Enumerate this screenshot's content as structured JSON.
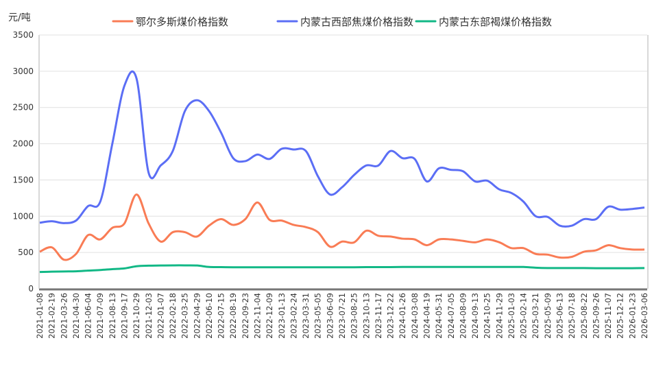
{
  "chart_data": {
    "type": "line",
    "ylabel": "元/吨",
    "ylim": [
      0,
      3500
    ],
    "yticks": [
      0,
      500,
      1000,
      1500,
      2000,
      2500,
      3000,
      3500
    ],
    "grid": "horizontal",
    "legend_placement": "top",
    "x": [
      "2021-01-08",
      "2021-02-19",
      "2021-03-26",
      "2021-04-30",
      "2021-06-04",
      "2021-07-09",
      "2021-08-13",
      "2021-09-17",
      "2021-10-29",
      "2021-12-03",
      "2022-01-07",
      "2022-02-18",
      "2022-03-25",
      "2022-04-29",
      "2022-06-10",
      "2022-07-15",
      "2022-08-19",
      "2022-09-23",
      "2022-11-04",
      "2022-12-09",
      "2023-01-13",
      "2023-02-24",
      "2023-03-31",
      "2023-05-05",
      "2023-06-09",
      "2023-07-21",
      "2023-08-25",
      "2023-10-13",
      "2023-11-17",
      "2023-12-22",
      "2024-01-26",
      "2024-03-08",
      "2024-04-19",
      "2024-05-31",
      "2024-07-05",
      "2024-08-09",
      "2024-09-13",
      "2024-10-25",
      "2024-11-29",
      "2025-01-03",
      "2025-02-14",
      "2025-03-21",
      "2025-05-09",
      "2025-06-13",
      "2025-07-18",
      "2025-08-22",
      "2025-09-26",
      "2025-11-07",
      "2025-12-12",
      "2026-01-23",
      "2026-03-06"
    ],
    "series": [
      {
        "name": "鄂尔多斯煤价格指数",
        "color": "#f97c55",
        "values": [
          510,
          570,
          400,
          480,
          740,
          680,
          840,
          900,
          1300,
          900,
          650,
          780,
          780,
          720,
          870,
          960,
          880,
          960,
          1190,
          950,
          940,
          880,
          850,
          780,
          580,
          650,
          640,
          800,
          730,
          720,
          690,
          680,
          600,
          680,
          680,
          660,
          640,
          680,
          640,
          560,
          560,
          480,
          470,
          430,
          440,
          510,
          530,
          600,
          560,
          540,
          540
        ]
      },
      {
        "name": "内蒙古西部焦煤价格指数",
        "color": "#5b6ef5",
        "values": [
          910,
          930,
          905,
          940,
          1140,
          1200,
          2000,
          2800,
          2900,
          1600,
          1700,
          1900,
          2450,
          2600,
          2450,
          2150,
          1800,
          1760,
          1850,
          1790,
          1930,
          1920,
          1900,
          1550,
          1300,
          1400,
          1570,
          1700,
          1700,
          1900,
          1800,
          1790,
          1480,
          1660,
          1640,
          1620,
          1480,
          1490,
          1370,
          1320,
          1200,
          1000,
          990,
          870,
          870,
          960,
          960,
          1130,
          1090,
          1100,
          1120
        ]
      },
      {
        "name": "内蒙古东部褐煤价格指数",
        "color": "#12b886",
        "values": [
          230,
          235,
          238,
          240,
          250,
          258,
          270,
          280,
          310,
          318,
          320,
          322,
          322,
          320,
          300,
          298,
          296,
          296,
          296,
          296,
          296,
          296,
          296,
          296,
          296,
          296,
          296,
          298,
          298,
          298,
          300,
          300,
          300,
          300,
          300,
          300,
          300,
          300,
          300,
          300,
          300,
          290,
          285,
          285,
          285,
          285,
          283,
          283,
          283,
          283,
          285
        ]
      }
    ]
  }
}
